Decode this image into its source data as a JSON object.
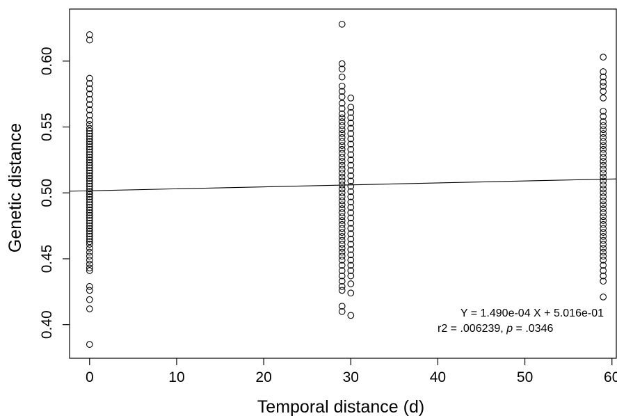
{
  "chart_data": {
    "type": "scatter",
    "title": "",
    "xlabel": "Temporal distance (d)",
    "ylabel": "Genetic distance",
    "xlim": [
      -2.3,
      60.5
    ],
    "ylim": [
      0.3745,
      0.6395
    ],
    "xticks": [
      0,
      10,
      20,
      30,
      40,
      50,
      60
    ],
    "yticks": [
      0.4,
      0.45,
      0.5,
      0.55,
      0.6
    ],
    "ytick_labels": [
      "0.40",
      "0.45",
      "0.50",
      "0.55",
      "0.60"
    ],
    "grid": false,
    "legend": "none",
    "regression": {
      "slope": 0.000149,
      "intercept": 0.5016
    },
    "annotation": {
      "equation": "Y = 1.490e-04 X + 5.016e-01",
      "r2_label": "r2 = .006239, ",
      "p_symbol": "p",
      "p_value": " = .0346"
    },
    "series": [
      {
        "x": 0,
        "y": [
          0.385,
          0.412,
          0.419,
          0.426,
          0.429,
          0.441,
          0.443,
          0.446,
          0.449,
          0.452,
          0.455,
          0.458,
          0.461,
          0.463,
          0.465,
          0.467,
          0.469,
          0.471,
          0.473,
          0.475,
          0.477,
          0.479,
          0.481,
          0.483,
          0.485,
          0.487,
          0.489,
          0.491,
          0.493,
          0.495,
          0.497,
          0.499,
          0.501,
          0.503,
          0.505,
          0.507,
          0.509,
          0.511,
          0.513,
          0.515,
          0.517,
          0.519,
          0.521,
          0.523,
          0.525,
          0.527,
          0.529,
          0.531,
          0.533,
          0.535,
          0.537,
          0.539,
          0.541,
          0.543,
          0.545,
          0.547,
          0.549,
          0.552,
          0.555,
          0.559,
          0.563,
          0.567,
          0.571,
          0.575,
          0.579,
          0.583,
          0.587,
          0.616,
          0.62
        ]
      },
      {
        "x": 29,
        "y": [
          0.41,
          0.414,
          0.426,
          0.429,
          0.433,
          0.437,
          0.441,
          0.445,
          0.449,
          0.452,
          0.455,
          0.458,
          0.461,
          0.464,
          0.467,
          0.47,
          0.473,
          0.476,
          0.479,
          0.482,
          0.485,
          0.488,
          0.491,
          0.494,
          0.497,
          0.5,
          0.503,
          0.506,
          0.509,
          0.512,
          0.515,
          0.518,
          0.521,
          0.524,
          0.527,
          0.53,
          0.533,
          0.536,
          0.539,
          0.542,
          0.545,
          0.548,
          0.551,
          0.554,
          0.557,
          0.56,
          0.564,
          0.568,
          0.573,
          0.577,
          0.581,
          0.588,
          0.594,
          0.598,
          0.628
        ]
      },
      {
        "x": 30,
        "y": [
          0.407,
          0.424,
          0.431,
          0.437,
          0.441,
          0.445,
          0.449,
          0.453,
          0.457,
          0.461,
          0.465,
          0.469,
          0.473,
          0.477,
          0.481,
          0.485,
          0.489,
          0.493,
          0.497,
          0.501,
          0.505,
          0.509,
          0.513,
          0.517,
          0.521,
          0.525,
          0.529,
          0.533,
          0.537,
          0.541,
          0.545,
          0.549,
          0.553,
          0.557,
          0.561,
          0.565,
          0.572
        ]
      },
      {
        "x": 59,
        "y": [
          0.421,
          0.433,
          0.437,
          0.441,
          0.445,
          0.449,
          0.452,
          0.455,
          0.458,
          0.461,
          0.464,
          0.467,
          0.47,
          0.473,
          0.476,
          0.479,
          0.482,
          0.485,
          0.488,
          0.491,
          0.494,
          0.497,
          0.5,
          0.503,
          0.506,
          0.509,
          0.512,
          0.515,
          0.518,
          0.521,
          0.524,
          0.527,
          0.53,
          0.533,
          0.536,
          0.539,
          0.542,
          0.545,
          0.548,
          0.551,
          0.554,
          0.558,
          0.562,
          0.572,
          0.577,
          0.581,
          0.584,
          0.588,
          0.592,
          0.603
        ]
      }
    ]
  }
}
